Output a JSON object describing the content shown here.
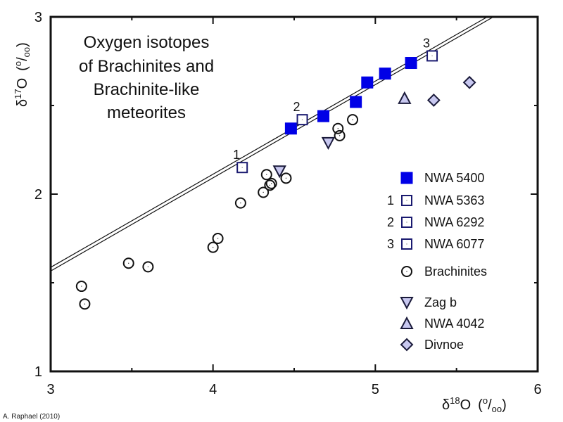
{
  "chart_data": {
    "type": "scatter",
    "title_lines": [
      "Oxygen isotopes",
      "of Brachinites and",
      "Brachinite-like",
      "meteorites"
    ],
    "xlabel": {
      "delta": "δ",
      "sup": "18",
      "main": "O",
      "unit_open": "(",
      "unit_sup": "o",
      "unit_slash": "/",
      "unit_sub": "oo",
      "unit_close": ")"
    },
    "ylabel": {
      "delta": "δ",
      "sup": "17",
      "main": "O",
      "unit_open": "(",
      "unit_sup": "o",
      "unit_slash": "/",
      "unit_sub": "oo",
      "unit_close": ")"
    },
    "xlim": [
      3,
      6
    ],
    "ylim": [
      1,
      3
    ],
    "x_ticks": [
      3,
      4,
      5,
      6
    ],
    "x_tick_labels": [
      "3",
      "4",
      "5",
      "6"
    ],
    "x_minor_ticks": [
      3.5,
      4.5,
      5.5
    ],
    "y_ticks": [
      1,
      2,
      3
    ],
    "y_tick_labels": [
      "1",
      "2",
      "3"
    ],
    "y_minor_ticks": [
      1.5,
      2.5
    ],
    "grid": false,
    "legend_position": "right",
    "reference_lines": [
      {
        "name": "TFL-upper",
        "x": [
          3,
          5.69
        ],
        "y": [
          1.587,
          3.0
        ]
      },
      {
        "name": "TFL-lower",
        "x": [
          3,
          5.71
        ],
        "y": [
          1.572,
          3.0
        ]
      }
    ],
    "series": [
      {
        "name": "NWA 5400",
        "marker": "square-filled",
        "number": "",
        "fill": "#0000e6",
        "stroke": "#0000e6",
        "points": [
          [
            4.48,
            2.37
          ],
          [
            4.68,
            2.44
          ],
          [
            4.88,
            2.52
          ],
          [
            4.95,
            2.63
          ],
          [
            5.06,
            2.68
          ],
          [
            5.22,
            2.74
          ]
        ]
      },
      {
        "name": "NWA 5363",
        "marker": "square-open",
        "number": "1",
        "fill": "#ffffff",
        "stroke": "#1a1a70",
        "points": [
          [
            4.18,
            2.15
          ]
        ]
      },
      {
        "name": "NWA 6292",
        "marker": "square-open",
        "number": "2",
        "fill": "#ffffff",
        "stroke": "#1a1a70",
        "points": [
          [
            4.55,
            2.42
          ]
        ]
      },
      {
        "name": "NWA 6077",
        "marker": "square-open",
        "number": "3",
        "fill": "#ffffff",
        "stroke": "#1a1a70",
        "points": [
          [
            5.35,
            2.78
          ]
        ]
      },
      {
        "name": "Brachinites",
        "marker": "circle-open",
        "number": "",
        "fill": "#ffffff",
        "stroke": "#111111",
        "points": [
          [
            3.19,
            1.48
          ],
          [
            3.21,
            1.38
          ],
          [
            3.48,
            1.61
          ],
          [
            3.6,
            1.59
          ],
          [
            4.0,
            1.7
          ],
          [
            4.03,
            1.75
          ],
          [
            4.17,
            1.95
          ],
          [
            4.31,
            2.01
          ],
          [
            4.35,
            2.05
          ],
          [
            4.36,
            2.06
          ],
          [
            4.33,
            2.11
          ],
          [
            4.45,
            2.09
          ],
          [
            4.77,
            2.37
          ],
          [
            4.78,
            2.33
          ],
          [
            4.86,
            2.42
          ]
        ]
      },
      {
        "name": "Zag b",
        "marker": "triangle-down",
        "number": "",
        "fill": "#c8c8f0",
        "stroke": "#1a1a3a",
        "points": [
          [
            4.41,
            2.13
          ],
          [
            4.71,
            2.29
          ]
        ]
      },
      {
        "name": "NWA 4042",
        "marker": "triangle-up",
        "number": "",
        "fill": "#c8c8f0",
        "stroke": "#1a1a3a",
        "points": [
          [
            5.18,
            2.54
          ]
        ]
      },
      {
        "name": "Divnoe",
        "marker": "diamond",
        "number": "",
        "fill": "#c8c8f0",
        "stroke": "#1a1a3a",
        "points": [
          [
            5.36,
            2.53
          ],
          [
            5.58,
            2.63
          ]
        ]
      }
    ],
    "credit": "A. Raphael (2010)"
  }
}
